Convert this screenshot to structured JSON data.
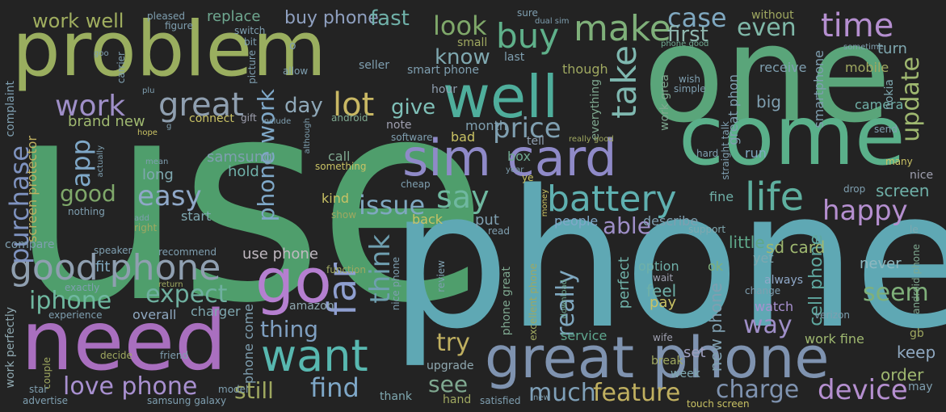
{
  "palette": {
    "background": "#232323",
    "olive": "#9aae5f",
    "green": "#5fae6e",
    "teal": "#4fae9c",
    "cyan": "#5fa8b4",
    "slate": "#7f93b0",
    "purple": "#a96fbf",
    "lavender": "#b58fd0",
    "yellow": "#c9c264"
  },
  "words": [
    {
      "text": "use",
      "color": "#4f9e6c"
    },
    {
      "text": "phone",
      "color": "#5fa8b4"
    },
    {
      "text": "one",
      "color": "#5aa57a"
    },
    {
      "text": "problem",
      "color": "#9aae5f"
    },
    {
      "text": "need",
      "color": "#a96fbf"
    },
    {
      "text": "come",
      "color": "#5ab08a"
    },
    {
      "text": "great phone",
      "color": "#7f93b0"
    },
    {
      "text": "sim card",
      "color": "#8f8ac8"
    },
    {
      "text": "well",
      "color": "#4fae9c"
    },
    {
      "text": "want",
      "color": "#58b8b0"
    },
    {
      "text": "go",
      "color": "#b57fd0"
    },
    {
      "text": "battery",
      "color": "#5fb0b0"
    },
    {
      "text": "life",
      "color": "#5fb0a0"
    },
    {
      "text": "time",
      "color": "#b58fd0"
    },
    {
      "text": "make",
      "color": "#7fb07a"
    },
    {
      "text": "buy",
      "color": "#5fb08a"
    },
    {
      "text": "take",
      "color": "#7fb8b0"
    },
    {
      "text": "far",
      "color": "#8f9fd0"
    },
    {
      "text": "good phone",
      "color": "#8f9fb0"
    },
    {
      "text": "work",
      "color": "#9f8fc8"
    },
    {
      "text": "great",
      "color": "#8f9fb0"
    },
    {
      "text": "lot",
      "color": "#c9b864"
    },
    {
      "text": "say",
      "color": "#6fb8a0"
    },
    {
      "text": "look",
      "color": "#7fa86a"
    },
    {
      "text": "case",
      "color": "#7fa8c0"
    },
    {
      "text": "even",
      "color": "#7fb8a8"
    },
    {
      "text": "first",
      "color": "#8fb8b0"
    },
    {
      "text": "work well",
      "color": "#a0ae5f"
    },
    {
      "text": "buy phone",
      "color": "#8fa0c0"
    },
    {
      "text": "fast",
      "color": "#6fb0a8"
    },
    {
      "text": "replace",
      "color": "#6fa890"
    },
    {
      "text": "know",
      "color": "#7fa8b0"
    },
    {
      "text": "give",
      "color": "#7fc0b8"
    },
    {
      "text": "day",
      "color": "#8fa8b8"
    },
    {
      "text": "price",
      "color": "#7f9fb0"
    },
    {
      "text": "happy",
      "color": "#b58fd0"
    },
    {
      "text": "update",
      "color": "#9fb870"
    },
    {
      "text": "issue",
      "color": "#7fa8c0"
    },
    {
      "text": "easy",
      "color": "#8fa8c8"
    },
    {
      "text": "good",
      "color": "#7fa86a"
    },
    {
      "text": "app",
      "color": "#7fa8c8"
    },
    {
      "text": "purchase",
      "color": "#7f93c0"
    },
    {
      "text": "iphone",
      "color": "#6fb8a0"
    },
    {
      "text": "expect",
      "color": "#6fb0a0"
    },
    {
      "text": "love phone",
      "color": "#a890d0"
    },
    {
      "text": "still",
      "color": "#9fa860"
    },
    {
      "text": "thing",
      "color": "#7f9fc0"
    },
    {
      "text": "think",
      "color": "#6f9fb0"
    },
    {
      "text": "find",
      "color": "#7fa8c8"
    },
    {
      "text": "much",
      "color": "#7fa0b8"
    },
    {
      "text": "feature",
      "color": "#c0b060"
    },
    {
      "text": "charge",
      "color": "#7f93b0"
    },
    {
      "text": "device",
      "color": "#b58fd0"
    },
    {
      "text": "try",
      "color": "#c0b060"
    },
    {
      "text": "see",
      "color": "#7fa890"
    },
    {
      "text": "really",
      "color": "#7fa8c0"
    },
    {
      "text": "able",
      "color": "#9f8fc8"
    },
    {
      "text": "seem",
      "color": "#7fb07a"
    },
    {
      "text": "way",
      "color": "#9f8fc8"
    },
    {
      "text": "screen",
      "color": "#6fb0a8"
    },
    {
      "text": "cell phone",
      "color": "#5fa8a0"
    },
    {
      "text": "new phone",
      "color": "#7f9fb0"
    },
    {
      "text": "phone work",
      "color": "#7fa8c8"
    },
    {
      "text": "brand new",
      "color": "#9fb870"
    },
    {
      "text": "month",
      "color": "#7f9fb0"
    },
    {
      "text": "samsung",
      "color": "#7f9fb0"
    },
    {
      "text": "hold",
      "color": "#6fb0a8"
    },
    {
      "text": "long",
      "color": "#7fa8b0"
    },
    {
      "text": "use phone",
      "color": "#c0b8c0"
    },
    {
      "text": "fit",
      "color": "#7fa8c0"
    },
    {
      "text": "little",
      "color": "#5fa88a"
    },
    {
      "text": "sd card",
      "color": "#9fb870"
    },
    {
      "text": "keep",
      "color": "#8fa8c0"
    },
    {
      "text": "order",
      "color": "#9fb870"
    },
    {
      "text": "never",
      "color": "#8fb8c0"
    },
    {
      "text": "feel",
      "color": "#6fb0a8"
    },
    {
      "text": "pay",
      "color": "#c9c264"
    },
    {
      "text": "watch",
      "color": "#a890d0"
    },
    {
      "text": "set",
      "color": "#9fa0c0"
    },
    {
      "text": "work fine",
      "color": "#9fb870"
    },
    {
      "text": "put",
      "color": "#7f9fb0"
    },
    {
      "text": "back",
      "color": "#c9c264"
    },
    {
      "text": "bad",
      "color": "#c9c264"
    },
    {
      "text": "kind",
      "color": "#c9c264"
    },
    {
      "text": "start",
      "color": "#7fa8b0"
    },
    {
      "text": "perfect",
      "color": "#6fb0a8"
    },
    {
      "text": "people",
      "color": "#7fa8c8"
    },
    {
      "text": "describe",
      "color": "#7f9fb0"
    },
    {
      "text": "always",
      "color": "#8fa8c8"
    },
    {
      "text": "ok",
      "color": "#7fb07a"
    },
    {
      "text": "yet",
      "color": "#7fa8b0"
    },
    {
      "text": "big",
      "color": "#7f9fb0"
    },
    {
      "text": "run",
      "color": "#7fa8c0"
    },
    {
      "text": "fine",
      "color": "#6fb0a8"
    },
    {
      "text": "turn",
      "color": "#7fa8b0"
    },
    {
      "text": "receive",
      "color": "#7f9fb0"
    },
    {
      "text": "without",
      "color": "#9fa860"
    },
    {
      "text": "camera",
      "color": "#6fb0a8"
    },
    {
      "text": "mobile",
      "color": "#9fa860"
    },
    {
      "text": "smartphone",
      "color": "#7f9fb0"
    },
    {
      "text": "nokia",
      "color": "#7fa8b0"
    },
    {
      "text": "smart phone",
      "color": "#7f9fb0"
    },
    {
      "text": "last",
      "color": "#7f9fb0"
    },
    {
      "text": "small",
      "color": "#9fa860"
    },
    {
      "text": "seller",
      "color": "#7f9fb0"
    },
    {
      "text": "though",
      "color": "#9fa860"
    },
    {
      "text": "everything",
      "color": "#7fa890"
    },
    {
      "text": "work grea",
      "color": "#7fa890"
    },
    {
      "text": "great phon",
      "color": "#7f9fb0"
    },
    {
      "text": "note",
      "color": "#9fa0b0"
    },
    {
      "text": "hour",
      "color": "#8f9fb0"
    },
    {
      "text": "tell",
      "color": "#8f9fb0"
    },
    {
      "text": "box",
      "color": "#6fa890"
    },
    {
      "text": "call",
      "color": "#7fa890"
    },
    {
      "text": "something",
      "color": "#c9c264"
    },
    {
      "text": "connect",
      "color": "#c9c264"
    },
    {
      "text": "gift",
      "color": "#9fa0b0"
    },
    {
      "text": "screen protector",
      "color": "#c0b060"
    },
    {
      "text": "complaint",
      "color": "#7f9fb0"
    },
    {
      "text": "compare",
      "color": "#7f9fb0"
    },
    {
      "text": "recommend",
      "color": "#7f9fb0"
    },
    {
      "text": "speaker",
      "color": "#7f9fb0"
    },
    {
      "text": "charger",
      "color": "#7fa8b0"
    },
    {
      "text": "overall",
      "color": "#8fa8c0"
    },
    {
      "text": "amazon",
      "color": "#8fa8b0"
    },
    {
      "text": "phone come",
      "color": "#7f9fb0"
    },
    {
      "text": "work perfectly",
      "color": "#8fa8b0"
    },
    {
      "text": "upgrade",
      "color": "#8fa8b0"
    },
    {
      "text": "thank",
      "color": "#7fa8b0"
    },
    {
      "text": "hand",
      "color": "#9fa860"
    },
    {
      "text": "satisfied",
      "color": "#7f9fb0"
    },
    {
      "text": "service",
      "color": "#5fa890"
    },
    {
      "text": "option",
      "color": "#6fb0a8"
    },
    {
      "text": "week",
      "color": "#7fa8b0"
    },
    {
      "text": "break",
      "color": "#9fa860"
    },
    {
      "text": "wife",
      "color": "#9fa0b0"
    },
    {
      "text": "touch screen",
      "color": "#c9c264"
    },
    {
      "text": "may",
      "color": "#7f9fb0"
    },
    {
      "text": "gb",
      "color": "#9fa860"
    },
    {
      "text": "verizon",
      "color": "#7f9fb0"
    },
    {
      "text": "android phone",
      "color": "#7fa890"
    },
    {
      "text": "le",
      "color": "#7fa8b0"
    },
    {
      "text": "support",
      "color": "#7fa8b0"
    },
    {
      "text": "drop",
      "color": "#7f9fb0"
    },
    {
      "text": "many",
      "color": "#c9c264"
    },
    {
      "text": "nice",
      "color": "#9fa0b0"
    },
    {
      "text": "hard",
      "color": "#7f9fb0"
    },
    {
      "text": "straight talk",
      "color": "#7f9fb0"
    },
    {
      "text": "simple",
      "color": "#7f9fb0"
    },
    {
      "text": "wish",
      "color": "#7f9fb0"
    },
    {
      "text": "send",
      "color": "#7f9fb0"
    },
    {
      "text": "sometime",
      "color": "#7f9fb0"
    },
    {
      "text": "phone good",
      "color": "#6fa890"
    },
    {
      "text": "really good",
      "color": "#9fa860"
    },
    {
      "text": "software",
      "color": "#7f9fb0"
    },
    {
      "text": "android",
      "color": "#7fa890"
    },
    {
      "text": "include",
      "color": "#7f9fb0"
    },
    {
      "text": "although",
      "color": "#7f9fb0"
    },
    {
      "text": "cheap",
      "color": "#7f9fb0"
    },
    {
      "text": "money",
      "color": "#c9c264"
    },
    {
      "text": "ye",
      "color": "#c9c264"
    },
    {
      "text": "year",
      "color": "#7f9fb0"
    },
    {
      "text": "show",
      "color": "#9fa860"
    },
    {
      "text": "read",
      "color": "#7f9fb0"
    },
    {
      "text": "review",
      "color": "#7f9fb0"
    },
    {
      "text": "nice phone",
      "color": "#7f9fb0"
    },
    {
      "text": "function",
      "color": "#9fa860"
    },
    {
      "text": "excellent phone",
      "color": "#9fa860"
    },
    {
      "text": "download",
      "color": "#6fa890"
    },
    {
      "text": "wait",
      "color": "#9fa0b0"
    },
    {
      "text": "change",
      "color": "#7f9fb0"
    },
    {
      "text": "new",
      "color": "#7f9fb0"
    },
    {
      "text": "phone great",
      "color": "#7fa890"
    },
    {
      "text": "dual sim",
      "color": "#7f9fb0"
    },
    {
      "text": "sure",
      "color": "#7f9fb0"
    },
    {
      "text": "pleased",
      "color": "#7f9fb0"
    },
    {
      "text": "figure",
      "color": "#7f9fb0"
    },
    {
      "text": "switch",
      "color": "#7f9fb0"
    },
    {
      "text": "bit",
      "color": "#7f9fb0"
    },
    {
      "text": "picture",
      "color": "#7f9fb0"
    },
    {
      "text": "allow",
      "color": "#7f9fb0"
    },
    {
      "text": "o",
      "color": "#7f9fb0"
    },
    {
      "text": "carrier",
      "color": "#7f9fb0"
    },
    {
      "text": "goo",
      "color": "#7f9fb0"
    },
    {
      "text": "plu",
      "color": "#7f9fb0"
    },
    {
      "text": "hope",
      "color": "#c9c264"
    },
    {
      "text": "g",
      "color": "#7f9fb0"
    },
    {
      "text": "actually",
      "color": "#7f9fb0"
    },
    {
      "text": "mean",
      "color": "#7f9fb0"
    },
    {
      "text": "add",
      "color": "#7f9fb0"
    },
    {
      "text": "right",
      "color": "#9fa860"
    },
    {
      "text": "nothing",
      "color": "#7f9fb0"
    },
    {
      "text": "exactly",
      "color": "#7f9fb0"
    },
    {
      "text": "return",
      "color": "#9fa860"
    },
    {
      "text": "experience",
      "color": "#7f9fb0"
    },
    {
      "text": "decide",
      "color": "#9fa860"
    },
    {
      "text": "friend",
      "color": "#7f9fb0"
    },
    {
      "text": "couple",
      "color": "#9fa860"
    },
    {
      "text": "star",
      "color": "#7f9fb0"
    },
    {
      "text": "advertise",
      "color": "#7f9fb0"
    },
    {
      "text": "samsung galaxy",
      "color": "#7f9fb0"
    },
    {
      "text": "model",
      "color": "#7f9fb0"
    }
  ]
}
